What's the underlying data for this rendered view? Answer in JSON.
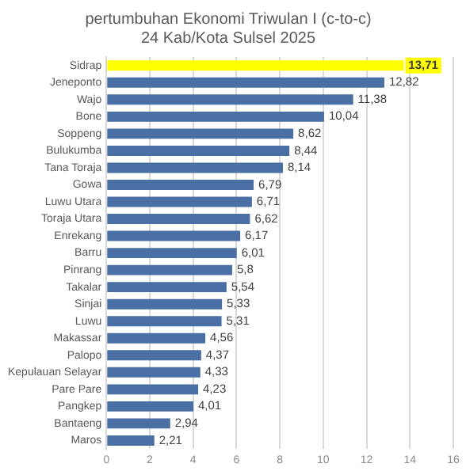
{
  "chart_data": {
    "type": "bar",
    "orientation": "horizontal",
    "title": [
      "pertumbuhan Ekonomi Triwulan I (c-to-c)",
      "24 Kab/Kota Sulsel 2025"
    ],
    "categories": [
      "Sidrap",
      "Jeneponto",
      "Wajo",
      "Bone",
      "Soppeng",
      "Bulukumba",
      "Tana Toraja",
      "Gowa",
      "Luwu Utara",
      "Toraja Utara",
      "Enrekang",
      "Barru",
      "Pinrang",
      "Takalar",
      "Sinjai",
      "Luwu",
      "Makassar",
      "Palopo",
      "Kepulauan Selayar",
      "Pare Pare",
      "Pangkep",
      "Bantaeng",
      "Maros"
    ],
    "values": [
      13.71,
      12.82,
      11.38,
      10.04,
      8.62,
      8.44,
      8.14,
      6.79,
      6.71,
      6.62,
      6.17,
      6.01,
      5.8,
      5.54,
      5.33,
      5.31,
      4.56,
      4.37,
      4.33,
      4.23,
      4.01,
      2.94,
      2.21
    ],
    "colors": [
      "#ffff00",
      "#4a6fa5",
      "#4a6fa5",
      "#4a6fa5",
      "#4a6fa5",
      "#4a6fa5",
      "#4a6fa5",
      "#4a6fa5",
      "#4a6fa5",
      "#4a6fa5",
      "#4a6fa5",
      "#4a6fa5",
      "#4a6fa5",
      "#4a6fa5",
      "#4a6fa5",
      "#4a6fa5",
      "#4a6fa5",
      "#4a6fa5",
      "#4a6fa5",
      "#4a6fa5",
      "#4a6fa5",
      "#4a6fa5",
      "#4a6fa5"
    ],
    "value_labels": [
      "13,71",
      "12,82",
      "11,38",
      "10,04",
      "8,62",
      "8,44",
      "8,14",
      "6,79",
      "6,71",
      "6,62",
      "6,17",
      "6,01",
      "5,8",
      "5,54",
      "5,33",
      "5,31",
      "4,56",
      "4,37",
      "4,33",
      "4,23",
      "4,01",
      "2,94",
      "2,21"
    ],
    "xlim": [
      0,
      16
    ],
    "xticks": [
      0,
      2,
      4,
      6,
      8,
      10,
      12,
      14,
      16
    ],
    "grid": "x"
  }
}
